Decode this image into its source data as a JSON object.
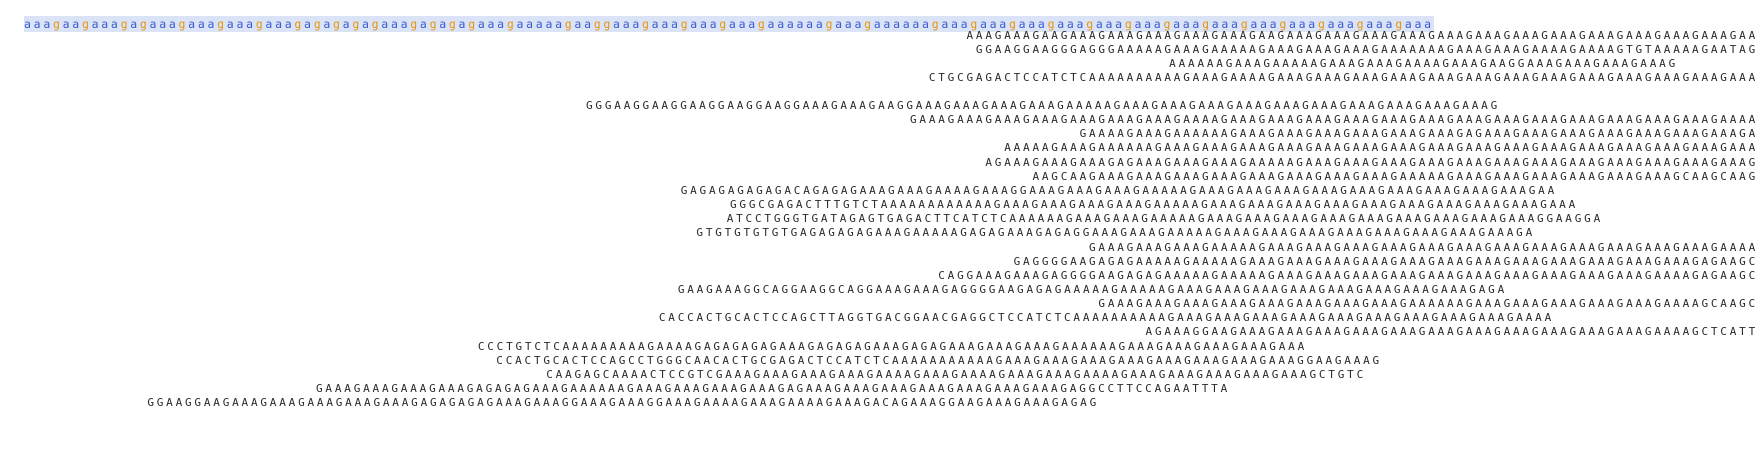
{
  "reference": {
    "sequence": "aaagaagaaagagaaagaaagaaagaaagagagagagaaagagagagaaagaaaaagaaggaaagaaagaaagaaagaaaaaagaaagaaaaaagaaagaaagaaagaaagaaagaaagaaagaaagaaagaaagaaagaaagaaa"
  },
  "reads": [
    "AAAGAAAGAAGAAAGAAAGAAAGAAAGAAAGAAGAAAGAAAGAAAGAAAGAAAGAAAGAAAGAAAGAAAGAAAGAAAGAAAGAA",
    "GGAAGGAAGGGAGGGAAAAAGAAAGAAAAAGAAAGAAAGAAAGAAAAAAAGAAAGAAAGAAAAGAAAAGTGTAAAAAGAATAG",
    "AAAAAAGAAAGAAAAAGAAAGAAAGAAAAGAAAGAAGGAAAGAAAGAAAGAAAG",
    "CTGCGAGACTCCATCTCAAAAAAAAAAGAAAGAAAAGAAAGAAAGAAAGAAAGAAAGAAAGAAAGAAAGAAAGAAAGAAAGAAAGAAA",
    "GGGAAGGAAGGAAGGAAGGAAGGAAAGAAAGAAGGAAAGAAAGAAAGAAAGAAAAAGAAAGAAAGAAAGAAAGAAAGAAAGAAAGAAAGAAAGAAAG",
    "GAAAGAAAGAAAGAAAGAAAGAAAGAAAGAAAAGAAAGAAAGAAAGAAAGAAAGAAAGAAAGAAAGAAAGAAAGAAAGAAAGAAAGAAAA",
    "GAAAAGAAAGAAAAAAGAAAGAAAGAAAGAAAGAAAGAAAGAGAAAGAAAGAAAGAAAGAAAGAAAGAAAGA",
    "AAAAAGAAAGAAAAAAGAAAGAAAGAAAGAAAGAAAGAAAGAAAGAAAGAAAGAAAGAAAGAAAGAAAGAAAGAAAGAAA",
    "AGAAAGAAAGAAAGAGAAAGAAAGAAAGAAAAAGAAAGAAAGAAAGAAAGAAAGAAAGAAAGAAAGAAAGAAAGAAAGAAAG",
    "AAGCAAGAAAGAAAGAAAGAAAGAAAGAAAGAAAGAAAGAAAAAGAAAGAAAGAAAGAAAGAAAGAAAGCAAGCAAG",
    "GAGAGAGAGAGACAGAGAGAAAGAAAGAAAAGAAAGGAAAGAAAGAAAGAAAAAGAAAGAAAGAAAGAAAGAAAGAAAGAAAGAAAGAAAGAA",
    "GGGCGAGACTTTGTCTAAAAAAAAAAAAGAAAGAAAGAAAGAAAGAAAAAGAAAGAAAGAAAGAAAGAAAGAAAGAAAGAAAGAAAGAAA",
    "ATCCTGGGTGATAGAGTGAGACTTCATCTCAAAAAAGAAAGAAAGAAAAAGAAAGAAAGAAAGAAAGAAAGAAAGAAAGAAAGAAAGGAAGGA",
    "GTGTGTGTGTGAGAGAGAGAAAGAAAAAGAGAGAAAGAGAGGAAAGAAAGAAAAAGAAAGAAAGAAAGAAAGAAAGAAAGAAAGAAAGA",
    "GAAAGAAAGAAAGAAAAAGAAAGAAAGAAAGAAAGAAAGAAAGAAAGAAAGAAAGAAAGAAAGAAAGAAAA",
    "GAGGGGAAGAGAGAAAAAGAAAAAGAAAGAAAGAAAGAAAGAAAGAAAGAAAGAAAGAAAGAAAGAAAGAAAGAGAAGC",
    "CAGGAAAGAAAGAGGGGAAGAGAGAAAAAGAAAAAGAAAGAAAGAAAGAAAGAAAGAAAGAAAGAAAGAAAGAAAGAAAAGAGAAGC",
    "GAAGAAAGGCAGGAAGGCAGGAAAGAAAGAGGGGAAGAGAGAAAAAGAAAAAGAAAGAAAGAAAGAAAGAAAGAAAGAAAGAAAGAGA",
    "GAAAGAAAGAAAGAAAGAAAGAAAGAAAGAAAGAAAAAAGAAAGAAAGAAAGAAAGAAAGAAAAGCAAGC",
    "CACCACTGCACTCCAGCTTAGGTGACGGAACGAGGCTCCATCTCAAAAAAAAAAGAAAGAAAGAAAGAAAGAAAGAAAGAAAGAAAGAAAGAAAA",
    "AGAAAGGAAGAAAGAAAGAAAGAAAGAAAGAAAGAAAGAAAGAAAGAAAGAAAGAAAAGCTCATT",
    "CCCTGTCTCAAAAAAAAAGAAAAGAGAGAGAGAAAGAGAGAGAAAGAGAGAAAGAAAGAAAGAAAAAAGAAAGAAAGAAAGAAAGAAA",
    "CCACTGCACTCCAGCCTGGGCAACACTGCGAGACTCCATCTCAAAAAAAAAAAGAAAGAAAGAAAGAAAGAAAGAAAGAAAGAAAGGAAGAAAG",
    "CAAGAGCAAAACTCCGTCGAAAGAAAGAAAGAAAGAAAAGAAAGAAAAGAAAGAAAGAAAAGAAAGAAAGAAAGAAAGAAAGCTGTC",
    "GAAAGAAAGAAAGAAAGAGAGAGAAAGAAAAAAGAAAGAAAGAAAGAAAGAGAAAGAAAGAAAGAAAGAAAGAAAGAAAGAGGCCTTCCAGAATTTA",
    "GGAAGGAAGAAAGAAAGAAAGAAAGAAAGAGAGAGAGAAAGAAAGGAAAGAAAGGAAAGAAAAGAAAGAAAAGAAAGACAGAAAGGAAGAAAGAAAGAGAG"
  ]
}
